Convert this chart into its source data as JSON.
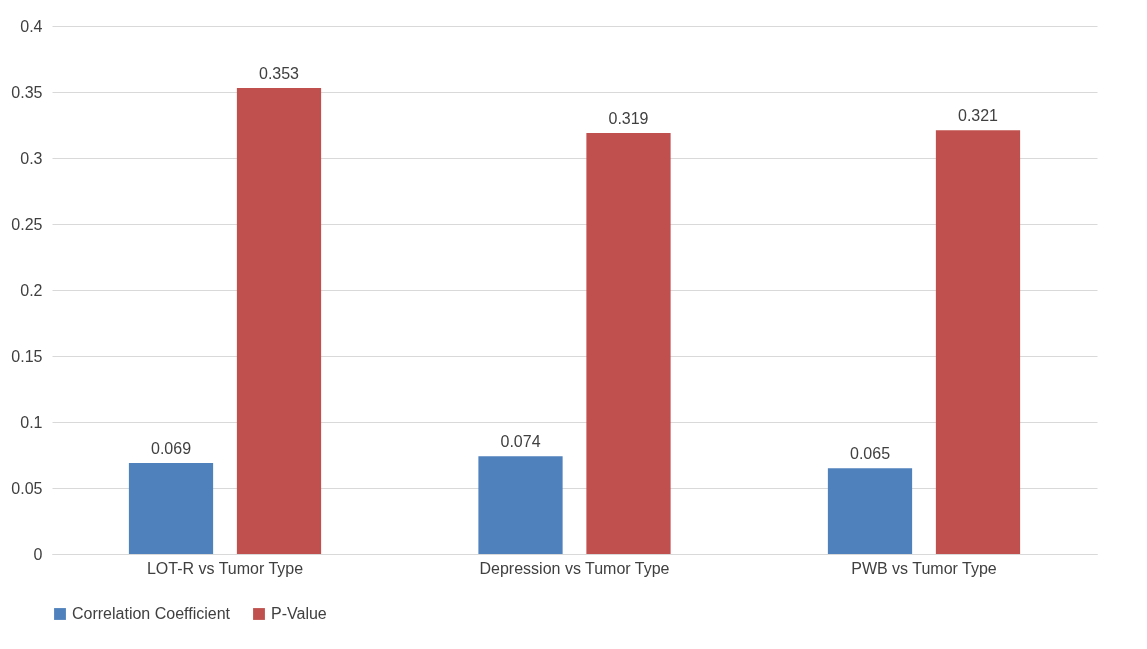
{
  "chart_data": {
    "type": "bar",
    "categories": [
      "LOT-R vs Tumor Type",
      "Depression vs Tumor Type",
      "PWB vs Tumor Type"
    ],
    "series": [
      {
        "name": "Correlation Coefficient",
        "color": "#4f81bd",
        "values": [
          0.069,
          0.074,
          0.065
        ]
      },
      {
        "name": "P-Value",
        "color": "#c0504d",
        "values": [
          0.353,
          0.319,
          0.321
        ]
      }
    ],
    "ylim": [
      0,
      0.4
    ],
    "yticks": [
      0,
      0.05,
      0.1,
      0.15,
      0.2,
      0.25,
      0.3,
      0.35,
      0.4
    ],
    "grid": "y",
    "legend": "bottom",
    "data_labels": true
  }
}
